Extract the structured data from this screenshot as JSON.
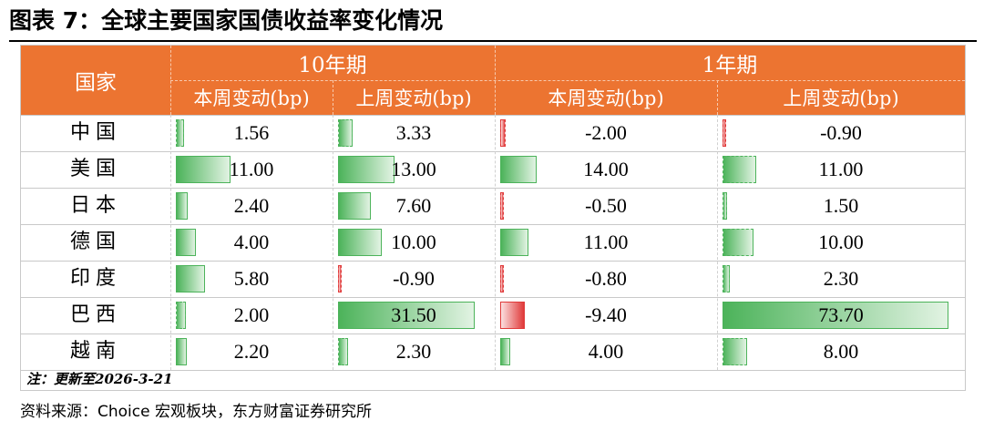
{
  "title": "图表 7：全球主要国家国债收益率变化情况",
  "header": {
    "country": "国家",
    "group_10y": "10年期",
    "group_1y": "1年期",
    "this_week": "本周变动(bp)",
    "last_week": "上周变动(bp)"
  },
  "rows": [
    {
      "country": "中国",
      "y10_this": "1.56",
      "y10_last": "3.33",
      "y1_this": "-2.00",
      "y1_last": "-0.90"
    },
    {
      "country": "美国",
      "y10_this": "11.00",
      "y10_last": "13.00",
      "y1_this": "14.00",
      "y1_last": "11.00"
    },
    {
      "country": "日本",
      "y10_this": "2.40",
      "y10_last": "7.60",
      "y1_this": "-0.50",
      "y1_last": "1.50"
    },
    {
      "country": "德国",
      "y10_this": "4.00",
      "y10_last": "10.00",
      "y1_this": "11.00",
      "y1_last": "10.00"
    },
    {
      "country": "印度",
      "y10_this": "5.80",
      "y10_last": "-0.90",
      "y1_this": "-0.80",
      "y1_last": "2.30"
    },
    {
      "country": "巴西",
      "y10_this": "2.00",
      "y10_last": "31.50",
      "y1_this": "-9.40",
      "y1_last": "73.70"
    },
    {
      "country": "越南",
      "y10_this": "2.20",
      "y10_last": "2.30",
      "y1_this": "4.00",
      "y1_last": "8.00"
    }
  ],
  "note": "注：更新至2026-3-21",
  "source": "资料来源：Choice 宏观板块，东方财富证券研究所",
  "colors": {
    "header": "#ec7431",
    "positive_bar": "#4cb35a",
    "negative_bar": "#e03a3a"
  }
}
